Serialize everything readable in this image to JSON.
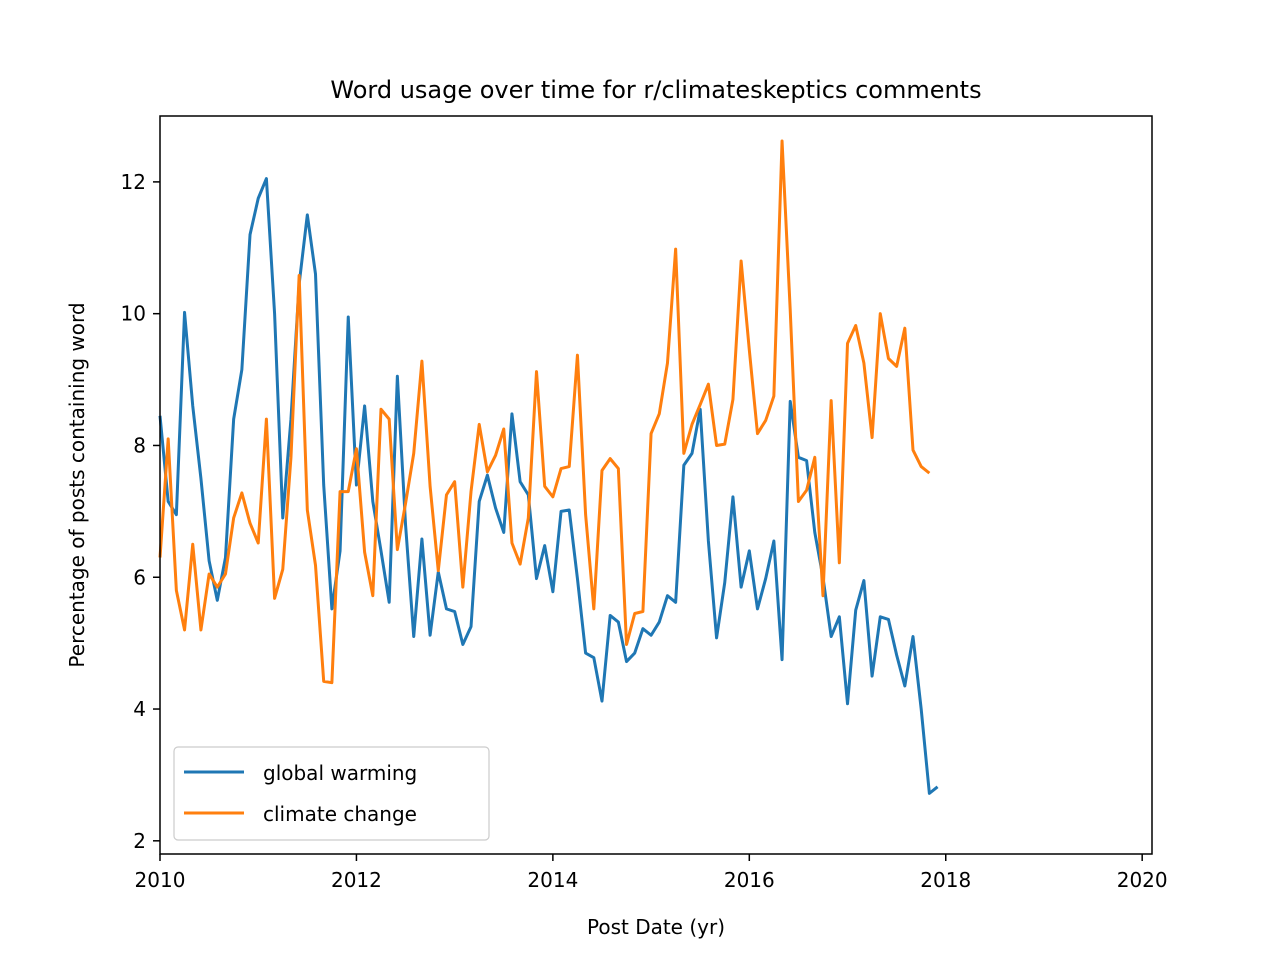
{
  "chart_data": {
    "type": "line",
    "title": "Word usage over time for r/climateskeptics comments",
    "xlabel": "Post Date (yr)",
    "ylabel": "Percentage of posts containing word",
    "xlim": [
      2010,
      2020.1
    ],
    "ylim": [
      1.8,
      13.0
    ],
    "xticks": [
      2010,
      2012,
      2014,
      2016,
      2018,
      2020
    ],
    "xtick_labels": [
      "2010",
      "2012",
      "2014",
      "2016",
      "2018",
      "2020"
    ],
    "yticks": [
      2,
      4,
      6,
      8,
      10,
      12
    ],
    "ytick_labels": [
      "2",
      "4",
      "6",
      "8",
      "10",
      "12"
    ],
    "grid": false,
    "legend_position": "lower-left",
    "x_start": 2010.0,
    "x_step_months": 1,
    "series": [
      {
        "name": "global warming",
        "color": "#1f77b4",
        "values": [
          8.45,
          7.15,
          6.95,
          10.02,
          8.6,
          7.5,
          6.25,
          5.65,
          6.3,
          8.4,
          9.15,
          11.2,
          11.75,
          12.05,
          10.0,
          6.9,
          8.4,
          10.45,
          11.5,
          10.6,
          7.4,
          5.52,
          6.4,
          9.95,
          7.4,
          8.6,
          7.15,
          6.4,
          5.62,
          9.05,
          6.8,
          5.1,
          6.58,
          5.12,
          6.08,
          5.52,
          5.48,
          4.98,
          5.25,
          7.15,
          7.55,
          7.05,
          6.68,
          8.48,
          7.45,
          7.25,
          5.98,
          6.48,
          5.78,
          7.0,
          7.02,
          5.98,
          4.85,
          4.78,
          4.12,
          5.42,
          5.32,
          4.72,
          4.85,
          5.22,
          5.12,
          5.32,
          5.72,
          5.62,
          7.7,
          7.88,
          8.55,
          6.55,
          5.08,
          5.92,
          7.22,
          5.85,
          6.4,
          5.52,
          5.98,
          6.55,
          4.75,
          8.67,
          7.82,
          7.77,
          6.68,
          6.0,
          5.1,
          5.4,
          4.08,
          5.5,
          5.95,
          4.5,
          5.4,
          5.36,
          4.82,
          4.35,
          5.1,
          4.0,
          2.72,
          2.82
        ]
      },
      {
        "name": "climate change",
        "color": "#ff7f0e",
        "values": [
          6.3,
          8.1,
          5.8,
          5.2,
          6.5,
          5.2,
          6.05,
          5.85,
          6.05,
          6.9,
          7.28,
          6.82,
          6.52,
          8.4,
          5.68,
          6.12,
          7.82,
          10.58,
          7.02,
          6.18,
          4.42,
          4.4,
          7.3,
          7.3,
          7.95,
          6.38,
          5.72,
          8.55,
          8.4,
          6.42,
          7.12,
          7.88,
          9.28,
          7.38,
          6.1,
          7.25,
          7.45,
          5.85,
          7.3,
          8.32,
          7.6,
          7.85,
          8.25,
          6.52,
          6.2,
          6.9,
          9.12,
          7.38,
          7.22,
          7.65,
          7.68,
          9.37,
          6.95,
          5.52,
          7.62,
          7.8,
          7.65,
          4.98,
          5.45,
          5.48,
          8.18,
          8.48,
          9.25,
          10.98,
          7.88,
          8.32,
          8.62,
          8.93,
          8.0,
          8.02,
          8.7,
          10.8,
          9.45,
          8.18,
          8.38,
          8.75,
          12.62,
          10.05,
          7.15,
          7.32,
          7.82,
          5.72,
          8.68,
          6.22,
          9.55,
          9.82,
          9.25,
          8.12,
          10.0,
          9.32,
          9.2,
          9.78,
          7.93,
          7.68,
          7.58
        ]
      }
    ]
  }
}
